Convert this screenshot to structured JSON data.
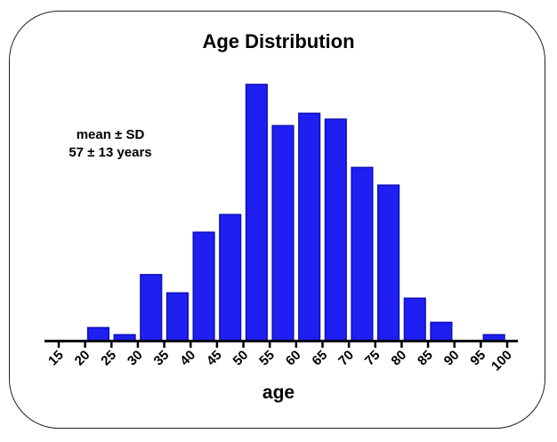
{
  "chart_data": {
    "type": "bar",
    "title": "Age Distribution",
    "xlabel": "age",
    "ylabel": "",
    "annotation": [
      "mean ± SD",
      "57 ± 13 years"
    ],
    "x_ticks": [
      "15",
      "20",
      "25",
      "30",
      "35",
      "40",
      "45",
      "50",
      "55",
      "60",
      "65",
      "70",
      "75",
      "80",
      "85",
      "90",
      "95",
      "100"
    ],
    "bin_width": 5,
    "bin_starts": [
      20,
      25,
      30,
      35,
      40,
      45,
      50,
      55,
      60,
      65,
      70,
      75,
      80,
      85,
      90,
      95
    ],
    "values": [
      2.2,
      1.0,
      11.2,
      8.1,
      18.4,
      21.4,
      43.5,
      36.5,
      38.6,
      37.6,
      29.4,
      26.4,
      7.2,
      3.1,
      0.0,
      1.0
    ],
    "xlim": [
      15,
      100
    ],
    "ylim": [
      0,
      45
    ],
    "grid": false,
    "legend": "none",
    "bar_color": "#1f1ff2",
    "bar_edge_color": "#0f0fb8"
  }
}
